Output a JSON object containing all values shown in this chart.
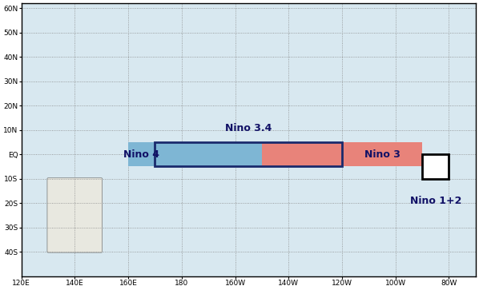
{
  "lon_min": 120,
  "lon_max": 290,
  "lat_min": -50,
  "lat_max": 62,
  "lon_ticks": [
    120,
    140,
    160,
    180,
    200,
    220,
    240,
    260,
    280
  ],
  "lon_labels": [
    "120E",
    "140E",
    "160E",
    "180",
    "160W",
    "140W",
    "120W",
    "100W",
    "80W"
  ],
  "lat_ticks": [
    -40,
    -30,
    -20,
    -10,
    0,
    10,
    20,
    30,
    40,
    50,
    60
  ],
  "lat_labels": [
    "40S",
    "30S",
    "20S",
    "10S",
    "EQ",
    "10N",
    "20N",
    "30N",
    "40N",
    "50N",
    "60N"
  ],
  "nino4": {
    "lon_min": 160,
    "lon_max": 210,
    "lat_min": -5,
    "lat_max": 5,
    "color": "#7EB6D4",
    "label": "Nino 4"
  },
  "nino34_lon_min": 170,
  "nino34_lon_max": 240,
  "nino34_lat_min": -5,
  "nino34_lat_max": 5,
  "nino3": {
    "lon_min": 210,
    "lon_max": 270,
    "lat_min": -5,
    "lat_max": 5,
    "color": "#E8837A",
    "label": "Nino 3"
  },
  "nino12": {
    "lon_min": 270,
    "lon_max": 280,
    "lat_min": -10,
    "lat_max": 0,
    "color": "white",
    "label": "Nino 1+2"
  },
  "nino34_label": "Nino 3.4",
  "ocean_color": "#D8E8F0",
  "land_color": "#E8E8E0",
  "land_edge_color": "#555555",
  "grid_color": "#888888",
  "box_label_color": "#111166",
  "nino4_color": "#7EB6D4",
  "nino3_color": "#E8837A",
  "nino34_border_color": "#1A2A6C",
  "fig_width": 5.98,
  "fig_height": 3.63,
  "dpi": 100
}
